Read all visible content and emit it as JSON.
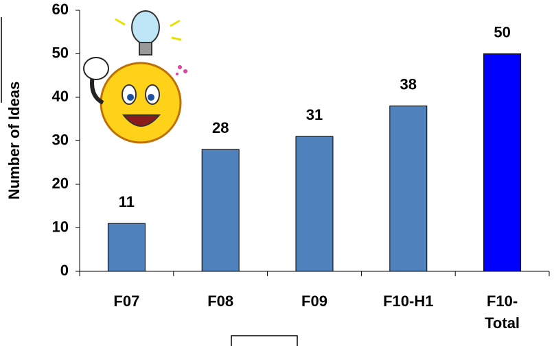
{
  "chart_data": {
    "type": "bar",
    "y_label": "Number of Ideas",
    "categories": [
      "F07",
      "F08",
      "F09",
      "F10-H1",
      "F10-Total"
    ],
    "values": [
      11,
      28,
      31,
      38,
      50
    ],
    "colors": [
      "#4f81bd",
      "#4f81bd",
      "#4f81bd",
      "#4f81bd",
      "#0000ff"
    ],
    "ylim": [
      0,
      60
    ],
    "yticks": [
      0,
      10,
      20,
      30,
      40,
      50,
      60
    ]
  }
}
